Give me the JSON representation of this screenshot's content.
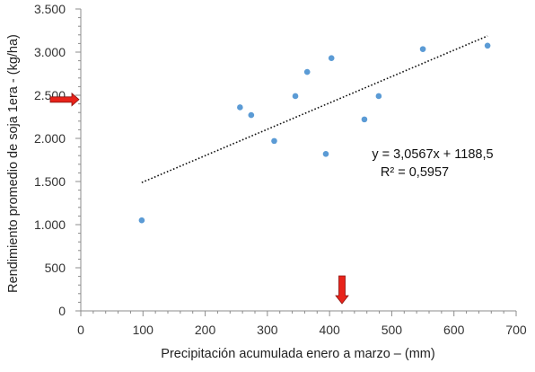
{
  "chart_data": {
    "type": "scatter",
    "xlabel": "Precipitación acumulada enero a marzo – (mm)",
    "ylabel": "Rendimiento promedio de soja 1era - (kg/ha)",
    "xlim": [
      0,
      700
    ],
    "ylim": [
      0,
      3500
    ],
    "x_ticks": [
      0,
      100,
      200,
      300,
      400,
      500,
      600,
      700
    ],
    "x_tick_labels": [
      "0",
      "100",
      "200",
      "300",
      "400",
      "500",
      "600",
      "700"
    ],
    "y_ticks": [
      0,
      500,
      1000,
      1500,
      2000,
      2500,
      3000,
      3500
    ],
    "y_tick_labels": [
      "0",
      "500",
      "1.000",
      "1.500",
      "2.000",
      "2.500",
      "3.000",
      "3.500"
    ],
    "x_minor_step": 20,
    "y_minor_step": 100,
    "grid": false,
    "point_color": "#5b9bd5",
    "trendline_color": "#111111",
    "arrow_color": "#e8231a",
    "points": [
      {
        "x": 98,
        "y": 1050
      },
      {
        "x": 256,
        "y": 2360
      },
      {
        "x": 274,
        "y": 2270
      },
      {
        "x": 311,
        "y": 1970
      },
      {
        "x": 345,
        "y": 2490
      },
      {
        "x": 364,
        "y": 2770
      },
      {
        "x": 394,
        "y": 1820
      },
      {
        "x": 403,
        "y": 2930
      },
      {
        "x": 456,
        "y": 2220
      },
      {
        "x": 479,
        "y": 2490
      },
      {
        "x": 550,
        "y": 3035
      },
      {
        "x": 654,
        "y": 3075
      }
    ],
    "trendline": {
      "slope": 3.0567,
      "intercept": 1188.5,
      "x_range": [
        98,
        654
      ],
      "equation": "y = 3,0567x + 1188,5",
      "r2": "R² = 0,5957"
    },
    "arrows": [
      {
        "axis": "y",
        "value": 2450
      },
      {
        "axis": "x",
        "value": 420
      }
    ]
  }
}
